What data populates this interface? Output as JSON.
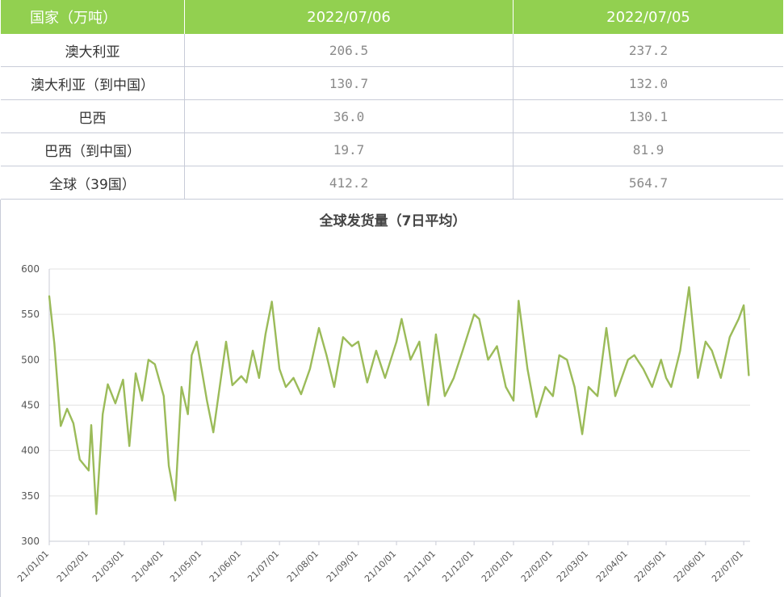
{
  "table": {
    "headers": [
      "国家（万吨）",
      "2022/07/06",
      "2022/07/05"
    ],
    "rows": [
      [
        "澳大利亚",
        "206.5",
        "237.2"
      ],
      [
        "澳大利亚（到中国）",
        "130.7",
        "132.0"
      ],
      [
        "巴西",
        "36.0",
        "130.1"
      ],
      [
        "巴西（到中国）",
        "19.7",
        "81.9"
      ],
      [
        "全球（39国）",
        "412.2",
        "564.7"
      ]
    ]
  },
  "chart_data": {
    "type": "line",
    "title": "全球发货量（7日平均）",
    "xlabel": "",
    "ylabel": "",
    "ylim": [
      300,
      600
    ],
    "yticks": [
      300,
      350,
      400,
      450,
      500,
      550,
      600
    ],
    "x_tick_labels": [
      "21/01/01",
      "21/02/01",
      "21/03/01",
      "21/04/01",
      "21/05/01",
      "21/06/01",
      "21/07/01",
      "21/08/01",
      "21/09/01",
      "21/10/01",
      "21/11/01",
      "21/12/01",
      "22/01/01",
      "22/02/01",
      "22/03/01",
      "22/04/01",
      "22/05/01",
      "22/06/01",
      "22/07/01"
    ],
    "grid": true,
    "legend": "none",
    "series_color": "#9bbb59",
    "series": [
      {
        "x": [
          "21/01/01",
          "21/01/05",
          "21/01/10",
          "21/01/15",
          "21/01/20",
          "21/01/25",
          "21/02/01",
          "21/02/03",
          "21/02/07",
          "21/02/12",
          "21/02/16",
          "21/02/22",
          "21/02/28",
          "21/03/05",
          "21/03/10",
          "21/03/15",
          "21/03/20",
          "21/03/25",
          "21/04/01",
          "21/04/05",
          "21/04/10",
          "21/04/15",
          "21/04/20",
          "21/04/23",
          "21/04/27",
          "21/05/01",
          "21/05/05",
          "21/05/10",
          "21/05/15",
          "21/05/20",
          "21/05/25",
          "21/06/01",
          "21/06/05",
          "21/06/10",
          "21/06/15",
          "21/06/20",
          "21/06/25",
          "21/07/01",
          "21/07/06",
          "21/07/12",
          "21/07/18",
          "21/07/25",
          "21/08/01",
          "21/08/07",
          "21/08/13",
          "21/08/20",
          "21/08/27",
          "21/09/01",
          "21/09/08",
          "21/09/15",
          "21/09/22",
          "21/10/01",
          "21/10/05",
          "21/10/12",
          "21/10/19",
          "21/10/26",
          "21/11/01",
          "21/11/08",
          "21/11/15",
          "21/11/22",
          "21/12/01",
          "21/12/05",
          "21/12/12",
          "21/12/19",
          "21/12/26",
          "22/01/01",
          "22/01/05",
          "22/01/12",
          "22/01/19",
          "22/01/26",
          "22/02/01",
          "22/02/06",
          "22/02/12",
          "22/02/18",
          "22/02/24",
          "22/03/01",
          "22/03/08",
          "22/03/15",
          "22/03/22",
          "22/04/01",
          "22/04/06",
          "22/04/13",
          "22/04/20",
          "22/04/27",
          "22/05/01",
          "22/05/05",
          "22/05/12",
          "22/05/19",
          "22/05/26",
          "22/06/01",
          "22/06/06",
          "22/06/13",
          "22/06/20",
          "22/06/27",
          "22/07/01",
          "22/07/05"
        ],
        "values": [
          570,
          518,
          427,
          446,
          430,
          390,
          378,
          428,
          330,
          440,
          473,
          452,
          478,
          405,
          485,
          455,
          500,
          495,
          460,
          383,
          345,
          470,
          440,
          505,
          520,
          488,
          455,
          420,
          470,
          520,
          472,
          482,
          475,
          510,
          480,
          528,
          564,
          490,
          470,
          480,
          462,
          490,
          535,
          505,
          470,
          525,
          515,
          520,
          475,
          510,
          480,
          520,
          545,
          500,
          520,
          450,
          528,
          460,
          480,
          510,
          550,
          545,
          500,
          515,
          470,
          455,
          565,
          490,
          437,
          470,
          460,
          505,
          500,
          470,
          418,
          470,
          460,
          535,
          460,
          500,
          505,
          490,
          470,
          500,
          480,
          470,
          510,
          580,
          480,
          520,
          510,
          480,
          525,
          545,
          560,
          483
        ]
      }
    ]
  }
}
